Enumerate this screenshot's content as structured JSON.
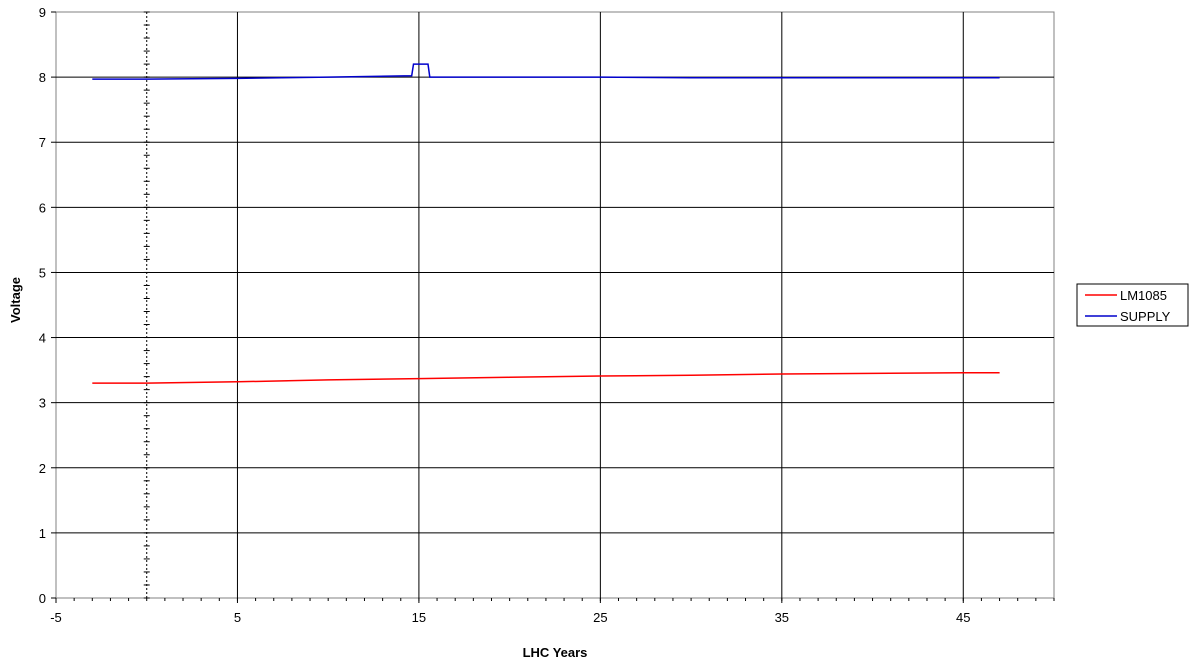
{
  "chart_data": {
    "type": "line",
    "title": "",
    "xlabel": "LHC Years",
    "ylabel": "Voltage",
    "xlim": [
      -5,
      50
    ],
    "ylim": [
      0,
      9
    ],
    "x_ticks": [
      "-5",
      "5",
      "15",
      "25",
      "35",
      "45"
    ],
    "y_ticks": [
      "0",
      "1",
      "2",
      "3",
      "4",
      "5",
      "6",
      "7",
      "8",
      "9"
    ],
    "grid": true,
    "legend_position": "right",
    "series": [
      {
        "name": "LM1085",
        "color": "#ff0000",
        "x": [
          -3,
          0,
          5,
          10,
          15,
          20,
          25,
          30,
          35,
          40,
          45,
          47
        ],
        "y": [
          3.3,
          3.3,
          3.32,
          3.35,
          3.37,
          3.39,
          3.41,
          3.42,
          3.44,
          3.45,
          3.46,
          3.46
        ]
      },
      {
        "name": "SUPPLY",
        "color": "#0000cc",
        "x": [
          -3,
          0,
          5,
          10,
          14.6,
          14.7,
          15.5,
          15.6,
          20,
          25,
          30,
          35,
          40,
          45,
          47
        ],
        "y": [
          7.97,
          7.97,
          7.98,
          8.0,
          8.02,
          8.2,
          8.2,
          8.0,
          8.0,
          8.0,
          7.99,
          7.99,
          7.99,
          7.99,
          7.99
        ]
      }
    ]
  }
}
